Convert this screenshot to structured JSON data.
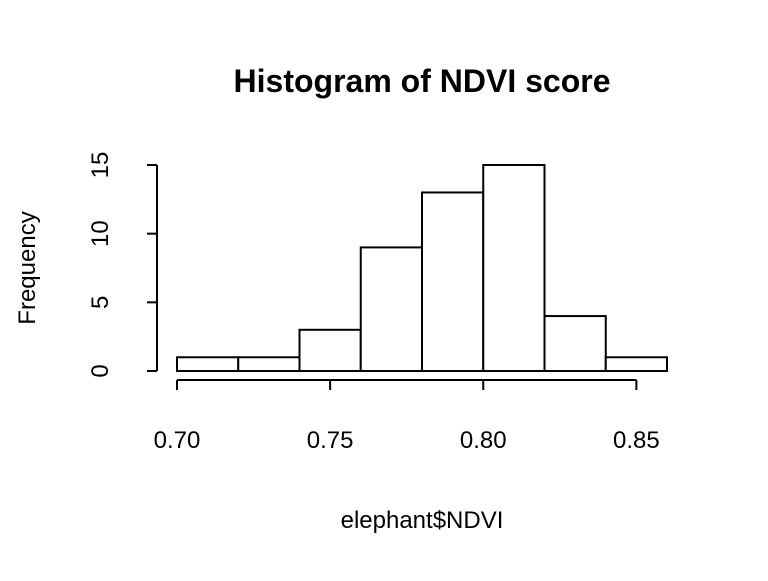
{
  "chart_data": {
    "type": "bar",
    "title": "Histogram of NDVI score",
    "xlabel": "elephant$NDVI",
    "ylabel": "Frequency",
    "bins": [
      {
        "start": 0.7,
        "end": 0.72,
        "count": 1
      },
      {
        "start": 0.72,
        "end": 0.74,
        "count": 1
      },
      {
        "start": 0.74,
        "end": 0.76,
        "count": 3
      },
      {
        "start": 0.76,
        "end": 0.78,
        "count": 9
      },
      {
        "start": 0.78,
        "end": 0.8,
        "count": 13
      },
      {
        "start": 0.8,
        "end": 0.82,
        "count": 15
      },
      {
        "start": 0.82,
        "end": 0.84,
        "count": 4
      },
      {
        "start": 0.84,
        "end": 0.86,
        "count": 1
      }
    ],
    "xlim": [
      0.7,
      0.86
    ],
    "ylim": [
      0,
      15
    ],
    "x_ticks": [
      {
        "value": 0.7,
        "label": "0.70"
      },
      {
        "value": 0.75,
        "label": "0.75"
      },
      {
        "value": 0.8,
        "label": "0.80"
      },
      {
        "value": 0.85,
        "label": "0.85"
      }
    ],
    "y_ticks": [
      {
        "value": 0,
        "label": "0"
      },
      {
        "value": 5,
        "label": "5"
      },
      {
        "value": 10,
        "label": "10"
      },
      {
        "value": 15,
        "label": "15"
      }
    ],
    "bar_fill": "#ffffff",
    "bar_stroke": "#000000",
    "grid": false,
    "legend": "none"
  }
}
